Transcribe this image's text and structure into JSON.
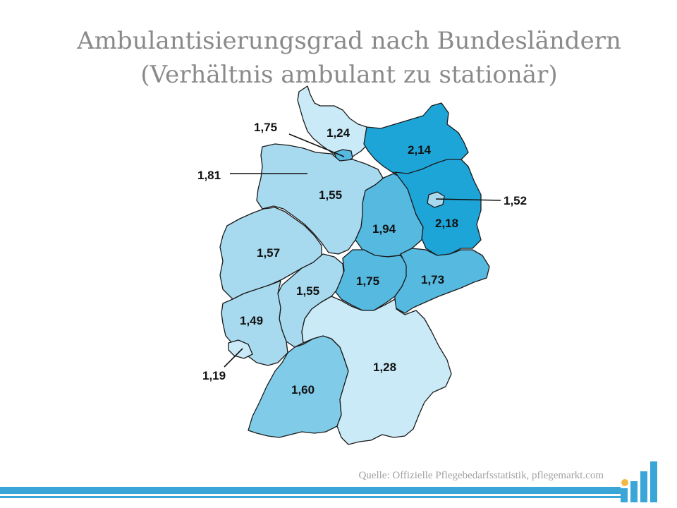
{
  "title": {
    "line1": "Ambulantisierungsgrad nach Bundesländern",
    "line2": "(Verhältnis ambulant zu stationär)"
  },
  "source": "Quelle: Offizielle Pflegebedarfsstatistik, pflegemarkt.com",
  "colors": {
    "bar": "#3aa6d8",
    "lightest": "#c9eaf6",
    "light": "#a8daef",
    "mid": "#7fcbe8",
    "medium": "#55b9e0",
    "dark": "#1ea5d8",
    "logo_accent": "#f4b942"
  },
  "regions": [
    {
      "id": "schleswig-holstein",
      "value": "1,24"
    },
    {
      "id": "hamburg",
      "value": "1,75"
    },
    {
      "id": "bremen",
      "value": "1,81"
    },
    {
      "id": "niedersachsen",
      "value": "1,55"
    },
    {
      "id": "mecklenburg-vorpommern",
      "value": "2,14"
    },
    {
      "id": "berlin",
      "value": "1,52"
    },
    {
      "id": "brandenburg",
      "value": "2,18"
    },
    {
      "id": "sachsen-anhalt",
      "value": "1,94"
    },
    {
      "id": "nordrhein-westfalen",
      "value": "1,57"
    },
    {
      "id": "hessen",
      "value": "1,55"
    },
    {
      "id": "thueringen",
      "value": "1,75"
    },
    {
      "id": "sachsen",
      "value": "1,73"
    },
    {
      "id": "rheinland-pfalz",
      "value": "1,49"
    },
    {
      "id": "saarland",
      "value": "1,19"
    },
    {
      "id": "baden-wuerttemberg",
      "value": "1,60"
    },
    {
      "id": "bayern",
      "value": "1,28"
    }
  ]
}
